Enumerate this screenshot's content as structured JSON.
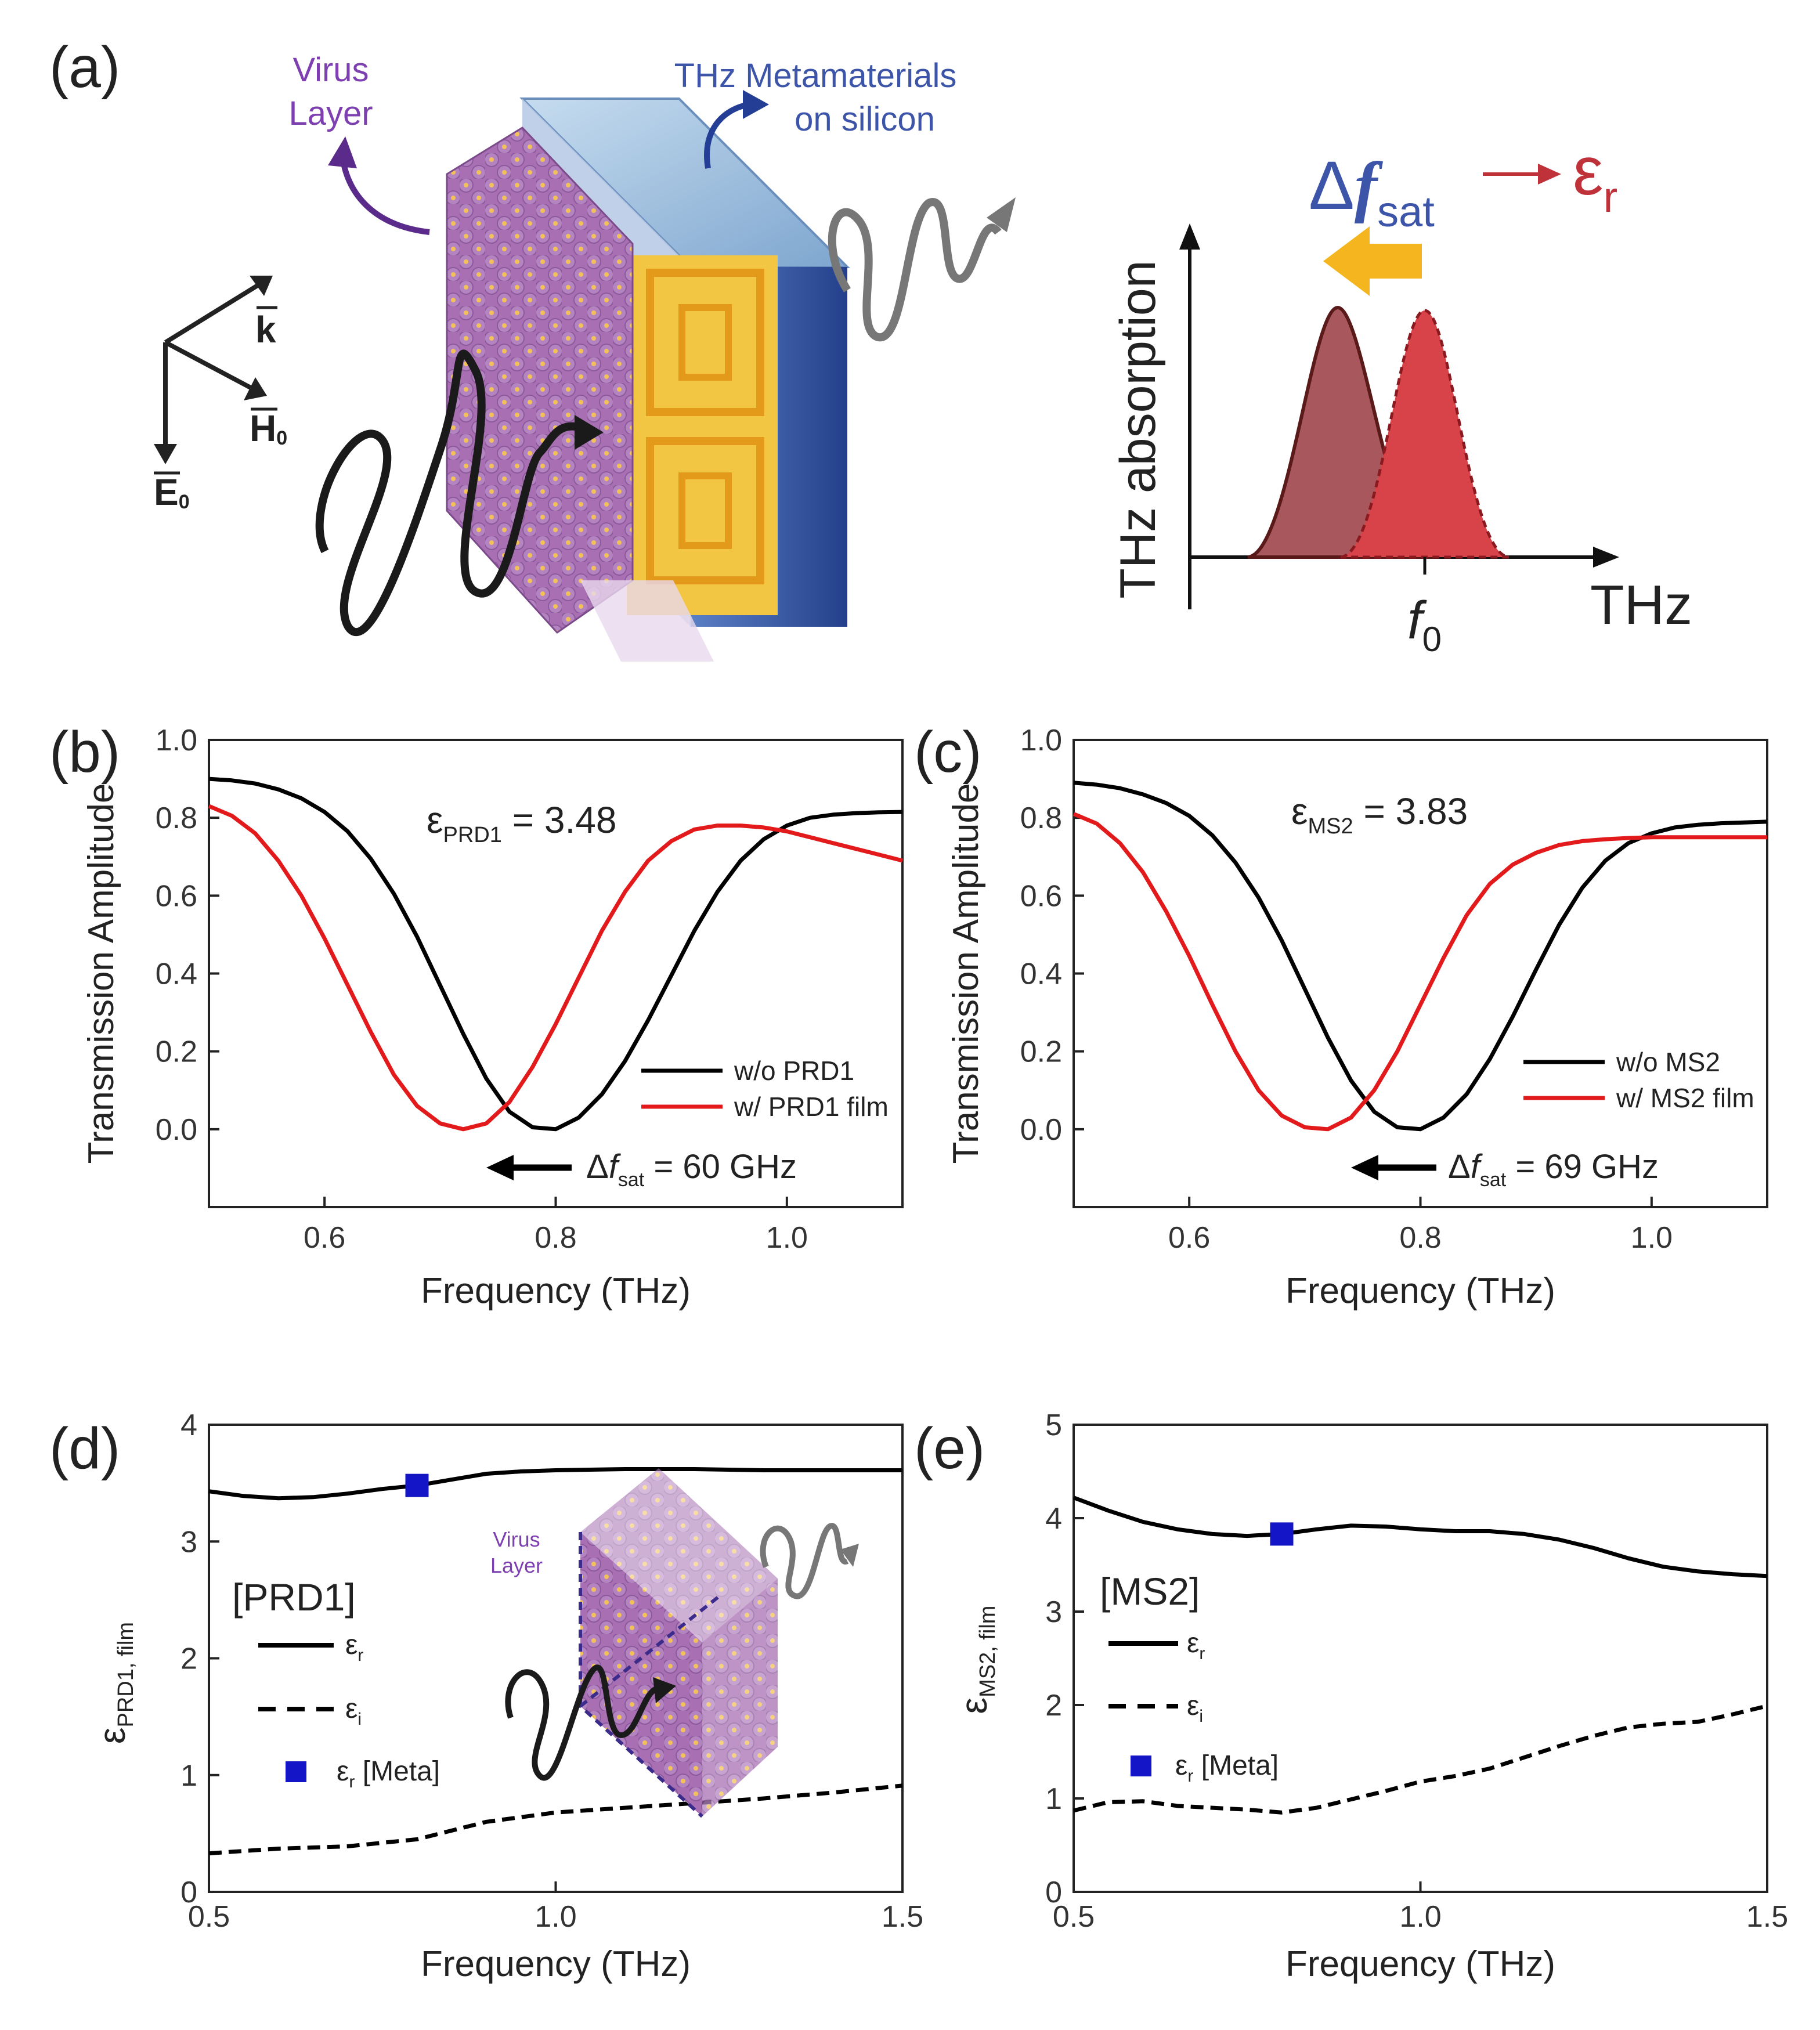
{
  "panels": {
    "a": {
      "label": "(a)",
      "virus_layer_label": [
        "Virus",
        "Layer"
      ],
      "metamaterial_label": [
        "THz Metamaterials",
        "on silicon"
      ],
      "axis_k": "k",
      "axis_h": "H",
      "axis_h_sub": "0",
      "axis_e": "E",
      "axis_e_sub": "0",
      "schematic": {
        "ylabel": "THz absorption",
        "xlabel": "THz",
        "f0_label": "f",
        "f0_sub": "0",
        "delta_symbol": "Δ",
        "delta_f": "f",
        "delta_sub": "sat",
        "eps": "ε",
        "eps_sub": "r"
      }
    },
    "b": {
      "label": "(b)",
      "eps_sym": "ε",
      "eps_sub": "PRD1",
      "eps_value": " = 3.48",
      "shift_pre": "Δ",
      "shift_f": "f",
      "shift_sub": "sat",
      "shift_value": " = 60 GHz"
    },
    "c": {
      "label": "(c)",
      "eps_sym": "ε",
      "eps_sub": "MS2",
      "eps_value": " = 3.83",
      "shift_pre": "Δ",
      "shift_f": "f",
      "shift_sub": "sat",
      "shift_value": " = 69 GHz"
    },
    "d": {
      "label": "(d)",
      "group": "[PRD1]",
      "inset_label": [
        "Virus",
        "Layer"
      ],
      "ylabel_sym": "ε",
      "ylabel_sub": "PRD1, film"
    },
    "e": {
      "label": "(e)",
      "group": "[MS2]",
      "ylabel_sym": "ε",
      "ylabel_sub": "MS2, film"
    }
  },
  "legend_common": {
    "er_sym": "ε",
    "er_sub": "r",
    "ei_sym": "ε",
    "ei_sub": "i",
    "meta_sym": "ε",
    "meta_sub": "r",
    "meta_tail": " [Meta]"
  },
  "colors": {
    "black": "#000000",
    "red": "#e31a1c",
    "blue": "#1515c8",
    "violet": "#7e3fb0",
    "navy": "#3d55a8",
    "crimson": "#c0323a"
  },
  "chart_data": [
    {
      "id": "b",
      "type": "line",
      "xlabel": "Frequency (THz)",
      "ylabel": "Transmission Amplitude",
      "xlim": [
        0.5,
        1.1
      ],
      "ylim": [
        -0.2,
        1.0
      ],
      "xticks": [
        "0.6",
        "0.8",
        "1.0"
      ],
      "xtick_values": [
        0.6,
        0.8,
        1.0
      ],
      "yticks": [
        "0.0",
        "0.2",
        "0.4",
        "0.6",
        "0.8",
        "1.0"
      ],
      "ytick_values": [
        0.0,
        0.2,
        0.4,
        0.6,
        0.8,
        1.0
      ],
      "series": [
        {
          "name": "w/o PRD1",
          "color": "#000000",
          "x": [
            0.5,
            0.52,
            0.54,
            0.56,
            0.58,
            0.6,
            0.62,
            0.64,
            0.66,
            0.68,
            0.7,
            0.72,
            0.74,
            0.76,
            0.78,
            0.8,
            0.82,
            0.84,
            0.86,
            0.88,
            0.9,
            0.92,
            0.94,
            0.96,
            0.98,
            1.0,
            1.02,
            1.04,
            1.06,
            1.08,
            1.1
          ],
          "y": [
            0.9,
            0.896,
            0.888,
            0.873,
            0.85,
            0.815,
            0.765,
            0.695,
            0.605,
            0.495,
            0.37,
            0.245,
            0.13,
            0.045,
            0.005,
            0.0,
            0.03,
            0.09,
            0.175,
            0.28,
            0.395,
            0.51,
            0.61,
            0.69,
            0.745,
            0.78,
            0.8,
            0.808,
            0.812,
            0.814,
            0.815
          ]
        },
        {
          "name": "w/ PRD1 film",
          "color": "#e31a1c",
          "x": [
            0.5,
            0.52,
            0.54,
            0.56,
            0.58,
            0.6,
            0.62,
            0.64,
            0.66,
            0.68,
            0.7,
            0.72,
            0.74,
            0.76,
            0.78,
            0.8,
            0.82,
            0.84,
            0.86,
            0.88,
            0.9,
            0.92,
            0.94,
            0.96,
            0.98,
            1.0,
            1.02,
            1.04,
            1.06,
            1.08,
            1.1
          ],
          "y": [
            0.83,
            0.805,
            0.76,
            0.69,
            0.6,
            0.49,
            0.37,
            0.25,
            0.14,
            0.06,
            0.015,
            0.0,
            0.015,
            0.07,
            0.16,
            0.27,
            0.39,
            0.51,
            0.61,
            0.69,
            0.74,
            0.77,
            0.78,
            0.78,
            0.775,
            0.765,
            0.75,
            0.735,
            0.72,
            0.705,
            0.69
          ]
        }
      ]
    },
    {
      "id": "c",
      "type": "line",
      "xlabel": "Frequency (THz)",
      "ylabel": "Transmission Amplitude",
      "xlim": [
        0.5,
        1.1
      ],
      "ylim": [
        -0.2,
        1.0
      ],
      "xticks": [
        "0.6",
        "0.8",
        "1.0"
      ],
      "xtick_values": [
        0.6,
        0.8,
        1.0
      ],
      "yticks": [
        "0.0",
        "0.2",
        "0.4",
        "0.6",
        "0.8",
        "1.0"
      ],
      "ytick_values": [
        0.0,
        0.2,
        0.4,
        0.6,
        0.8,
        1.0
      ],
      "series": [
        {
          "name": "w/o MS2",
          "color": "#000000",
          "x": [
            0.5,
            0.52,
            0.54,
            0.56,
            0.58,
            0.6,
            0.62,
            0.64,
            0.66,
            0.68,
            0.7,
            0.72,
            0.74,
            0.76,
            0.78,
            0.8,
            0.82,
            0.84,
            0.86,
            0.88,
            0.9,
            0.92,
            0.94,
            0.96,
            0.98,
            1.0,
            1.02,
            1.04,
            1.06,
            1.08,
            1.1
          ],
          "y": [
            0.89,
            0.885,
            0.876,
            0.86,
            0.838,
            0.805,
            0.755,
            0.685,
            0.595,
            0.485,
            0.36,
            0.235,
            0.125,
            0.045,
            0.005,
            0.0,
            0.03,
            0.09,
            0.18,
            0.29,
            0.41,
            0.525,
            0.62,
            0.69,
            0.735,
            0.76,
            0.775,
            0.782,
            0.786,
            0.788,
            0.79
          ]
        },
        {
          "name": "w/ MS2 film",
          "color": "#e31a1c",
          "x": [
            0.5,
            0.52,
            0.54,
            0.56,
            0.58,
            0.6,
            0.62,
            0.64,
            0.66,
            0.68,
            0.7,
            0.72,
            0.74,
            0.76,
            0.78,
            0.8,
            0.82,
            0.84,
            0.86,
            0.88,
            0.9,
            0.92,
            0.94,
            0.96,
            0.98,
            1.0,
            1.02,
            1.04,
            1.06,
            1.08,
            1.1
          ],
          "y": [
            0.81,
            0.785,
            0.735,
            0.66,
            0.56,
            0.445,
            0.32,
            0.2,
            0.1,
            0.035,
            0.005,
            0.0,
            0.03,
            0.1,
            0.2,
            0.32,
            0.44,
            0.55,
            0.63,
            0.68,
            0.71,
            0.73,
            0.74,
            0.745,
            0.748,
            0.75,
            0.75,
            0.75,
            0.75,
            0.75,
            0.75
          ]
        }
      ]
    },
    {
      "id": "d",
      "type": "line",
      "xlabel": "Frequency (THz)",
      "xlim": [
        0.5,
        1.5
      ],
      "ylim": [
        0,
        4
      ],
      "xticks": [
        "0.5",
        "1.0",
        "1.5"
      ],
      "xtick_values": [
        0.5,
        1.0,
        1.5
      ],
      "yticks": [
        "0",
        "1",
        "2",
        "3",
        "4"
      ],
      "ytick_values": [
        0,
        1,
        2,
        3,
        4
      ],
      "series": [
        {
          "name": "εr",
          "color": "#000000",
          "dash": false,
          "x": [
            0.5,
            0.55,
            0.6,
            0.65,
            0.7,
            0.75,
            0.8,
            0.85,
            0.9,
            0.95,
            1.0,
            1.1,
            1.2,
            1.3,
            1.4,
            1.5
          ],
          "y": [
            3.43,
            3.39,
            3.37,
            3.38,
            3.41,
            3.45,
            3.48,
            3.53,
            3.58,
            3.6,
            3.61,
            3.62,
            3.62,
            3.61,
            3.61,
            3.61
          ]
        },
        {
          "name": "εi",
          "color": "#000000",
          "dash": true,
          "x": [
            0.5,
            0.6,
            0.7,
            0.8,
            0.9,
            1.0,
            1.1,
            1.2,
            1.3,
            1.4,
            1.5
          ],
          "y": [
            0.33,
            0.37,
            0.39,
            0.45,
            0.6,
            0.68,
            0.72,
            0.76,
            0.8,
            0.85,
            0.91
          ]
        }
      ],
      "markers": [
        {
          "name": "εr [Meta]",
          "color": "#1515c8",
          "x": 0.8,
          "y": 3.48
        }
      ]
    },
    {
      "id": "e",
      "type": "line",
      "xlabel": "Frequency (THz)",
      "xlim": [
        0.5,
        1.5
      ],
      "ylim": [
        0,
        5
      ],
      "xticks": [
        "0.5",
        "1.0",
        "1.5"
      ],
      "xtick_values": [
        0.5,
        1.0,
        1.5
      ],
      "yticks": [
        "0",
        "1",
        "2",
        "3",
        "4",
        "5"
      ],
      "ytick_values": [
        0,
        1,
        2,
        3,
        4,
        5
      ],
      "series": [
        {
          "name": "εr",
          "color": "#000000",
          "dash": false,
          "x": [
            0.5,
            0.55,
            0.6,
            0.65,
            0.7,
            0.75,
            0.8,
            0.85,
            0.9,
            0.95,
            1.0,
            1.05,
            1.1,
            1.15,
            1.2,
            1.25,
            1.3,
            1.35,
            1.4,
            1.45,
            1.5
          ],
          "y": [
            4.22,
            4.08,
            3.96,
            3.88,
            3.83,
            3.81,
            3.83,
            3.88,
            3.92,
            3.91,
            3.88,
            3.86,
            3.86,
            3.83,
            3.77,
            3.68,
            3.57,
            3.48,
            3.43,
            3.4,
            3.38
          ]
        },
        {
          "name": "εi",
          "color": "#000000",
          "dash": true,
          "x": [
            0.5,
            0.55,
            0.6,
            0.65,
            0.7,
            0.75,
            0.8,
            0.85,
            0.9,
            0.95,
            1.0,
            1.05,
            1.1,
            1.15,
            1.2,
            1.25,
            1.3,
            1.35,
            1.4,
            1.45,
            1.5
          ],
          "y": [
            0.87,
            0.96,
            0.97,
            0.92,
            0.9,
            0.88,
            0.85,
            0.9,
            0.99,
            1.08,
            1.18,
            1.24,
            1.32,
            1.44,
            1.56,
            1.67,
            1.76,
            1.8,
            1.82,
            1.9,
            1.99
          ]
        }
      ],
      "markers": [
        {
          "name": "εr [Meta]",
          "color": "#1515c8",
          "x": 0.8,
          "y": 3.83
        }
      ]
    }
  ]
}
